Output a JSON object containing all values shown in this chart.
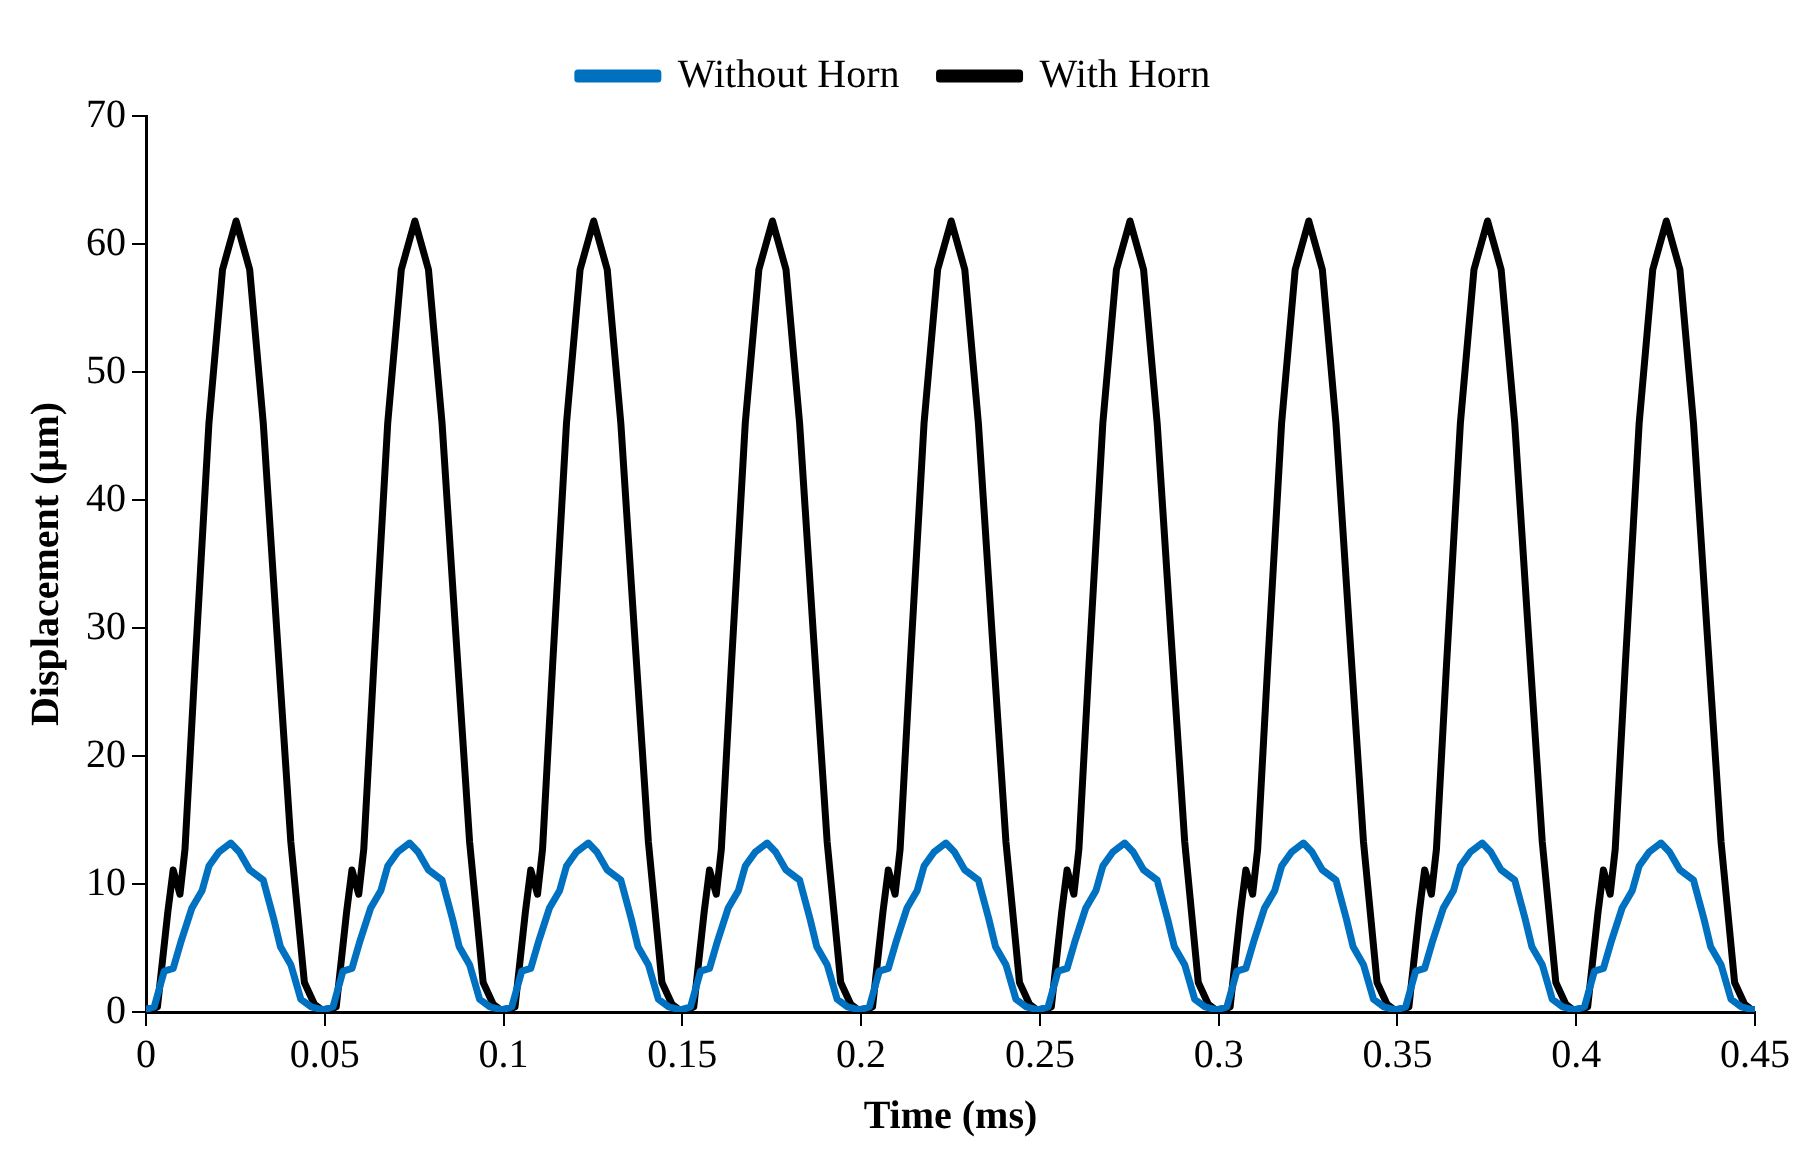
{
  "chart_data": {
    "type": "line",
    "xlabel": "Time (ms)",
    "ylabel": "Displacement (µm)",
    "xlim": [
      0,
      0.45
    ],
    "ylim": [
      0,
      70
    ],
    "xticks": [
      0,
      0.05,
      0.1,
      0.15,
      0.2,
      0.25,
      0.3,
      0.35,
      0.4,
      0.45
    ],
    "yticks": [
      0,
      10,
      20,
      30,
      40,
      50,
      60,
      70
    ],
    "grid": false,
    "legend": "top",
    "marker": "none",
    "line_style": "solid",
    "series": [
      {
        "name": "Without Horn",
        "color": "#0070c0",
        "x": [
          0,
          0.0023,
          0.0051,
          0.0076,
          0.0099,
          0.0128,
          0.0157,
          0.0176,
          0.0204,
          0.0237,
          0.0261,
          0.029,
          0.0328,
          0.0357,
          0.0376,
          0.0405,
          0.0433,
          0.0462,
          0.049,
          0.05,
          0.0523,
          0.0551,
          0.0576,
          0.0599,
          0.0628,
          0.0657,
          0.0676,
          0.0704,
          0.0737,
          0.0761,
          0.079,
          0.0828,
          0.0857,
          0.0876,
          0.0905,
          0.0933,
          0.0962,
          0.099,
          0.1,
          0.1023,
          0.1051,
          0.1076,
          0.1099,
          0.1128,
          0.1157,
          0.1176,
          0.1204,
          0.1237,
          0.1261,
          0.129,
          0.1328,
          0.1357,
          0.1376,
          0.1405,
          0.1433,
          0.1462,
          0.149,
          0.15,
          0.1523,
          0.1551,
          0.1576,
          0.1599,
          0.1628,
          0.1657,
          0.1676,
          0.1704,
          0.1737,
          0.1761,
          0.179,
          0.1828,
          0.1857,
          0.1876,
          0.1905,
          0.1933,
          0.1962,
          0.199,
          0.2,
          0.2023,
          0.2051,
          0.2076,
          0.2099,
          0.2128,
          0.2157,
          0.2176,
          0.2204,
          0.2237,
          0.2261,
          0.229,
          0.2328,
          0.2357,
          0.2376,
          0.2405,
          0.2433,
          0.2462,
          0.249,
          0.25,
          0.2523,
          0.2551,
          0.2576,
          0.2599,
          0.2628,
          0.2657,
          0.2676,
          0.2704,
          0.2737,
          0.2761,
          0.279,
          0.2828,
          0.2857,
          0.2876,
          0.2905,
          0.2933,
          0.2962,
          0.299,
          0.3,
          0.3023,
          0.3051,
          0.3076,
          0.3099,
          0.3128,
          0.3157,
          0.3176,
          0.3204,
          0.3237,
          0.3261,
          0.329,
          0.3328,
          0.3357,
          0.3376,
          0.3405,
          0.3433,
          0.3462,
          0.349,
          0.35,
          0.3523,
          0.3551,
          0.3576,
          0.3599,
          0.3628,
          0.3657,
          0.3676,
          0.3704,
          0.3737,
          0.3761,
          0.379,
          0.3828,
          0.3857,
          0.3876,
          0.3905,
          0.3933,
          0.3962,
          0.399,
          0.4,
          0.4023,
          0.4051,
          0.4076,
          0.4099,
          0.4128,
          0.4157,
          0.4176,
          0.4204,
          0.4237,
          0.4261,
          0.429,
          0.4328,
          0.4357,
          0.4376,
          0.4405,
          0.4433,
          0.4462,
          0.449,
          0.45
        ],
        "values": [
          0.2,
          0.4,
          3.2,
          3.4,
          5.6,
          8.1,
          9.5,
          11.4,
          12.5,
          13.2,
          12.5,
          11.1,
          10.3,
          7.3,
          5.1,
          3.7,
          1.0,
          0.4,
          0.2,
          0.2,
          0.4,
          3.2,
          3.4,
          5.6,
          8.1,
          9.5,
          11.4,
          12.5,
          13.2,
          12.5,
          11.1,
          10.3,
          7.3,
          5.1,
          3.7,
          1.0,
          0.4,
          0.2,
          0.2,
          0.4,
          3.2,
          3.4,
          5.6,
          8.1,
          9.5,
          11.4,
          12.5,
          13.2,
          12.5,
          11.1,
          10.3,
          7.3,
          5.1,
          3.7,
          1.0,
          0.4,
          0.2,
          0.2,
          0.4,
          3.2,
          3.4,
          5.6,
          8.1,
          9.5,
          11.4,
          12.5,
          13.2,
          12.5,
          11.1,
          10.3,
          7.3,
          5.1,
          3.7,
          1.0,
          0.4,
          0.2,
          0.2,
          0.4,
          3.2,
          3.4,
          5.6,
          8.1,
          9.5,
          11.4,
          12.5,
          13.2,
          12.5,
          11.1,
          10.3,
          7.3,
          5.1,
          3.7,
          1.0,
          0.4,
          0.2,
          0.2,
          0.4,
          3.2,
          3.4,
          5.6,
          8.1,
          9.5,
          11.4,
          12.5,
          13.2,
          12.5,
          11.1,
          10.3,
          7.3,
          5.1,
          3.7,
          1.0,
          0.4,
          0.2,
          0.2,
          0.4,
          3.2,
          3.4,
          5.6,
          8.1,
          9.5,
          11.4,
          12.5,
          13.2,
          12.5,
          11.1,
          10.3,
          7.3,
          5.1,
          3.7,
          1.0,
          0.4,
          0.2,
          0.2,
          0.4,
          3.2,
          3.4,
          5.6,
          8.1,
          9.5,
          11.4,
          12.5,
          13.2,
          12.5,
          11.1,
          10.3,
          7.3,
          5.1,
          3.7,
          1.0,
          0.4,
          0.2,
          0.2,
          0.4,
          3.2,
          3.4,
          5.6,
          8.1,
          9.5,
          11.4,
          12.5,
          13.2,
          12.5,
          11.1,
          10.3,
          7.3,
          5.1,
          3.7,
          1.0,
          0.4,
          0.2,
          0.2
        ]
      },
      {
        "name": "With Horn",
        "color": "#000000",
        "x": [
          0,
          0.0032,
          0.0061,
          0.0076,
          0.0095,
          0.0109,
          0.0137,
          0.0176,
          0.0214,
          0.0252,
          0.029,
          0.0328,
          0.0366,
          0.0405,
          0.0443,
          0.0471,
          0.05,
          0.0532,
          0.0561,
          0.0576,
          0.0595,
          0.0609,
          0.0637,
          0.0676,
          0.0714,
          0.0752,
          0.079,
          0.0828,
          0.0866,
          0.0905,
          0.0943,
          0.0971,
          0.1,
          0.1032,
          0.1061,
          0.1076,
          0.1095,
          0.1109,
          0.1137,
          0.1176,
          0.1214,
          0.1252,
          0.129,
          0.1328,
          0.1366,
          0.1405,
          0.1443,
          0.1471,
          0.15,
          0.1532,
          0.1561,
          0.1576,
          0.1595,
          0.1609,
          0.1637,
          0.1676,
          0.1714,
          0.1752,
          0.179,
          0.1828,
          0.1866,
          0.1905,
          0.1943,
          0.1971,
          0.2,
          0.2032,
          0.2061,
          0.2076,
          0.2095,
          0.2109,
          0.2137,
          0.2176,
          0.2214,
          0.2252,
          0.229,
          0.2328,
          0.2366,
          0.2405,
          0.2443,
          0.2471,
          0.25,
          0.2532,
          0.2561,
          0.2576,
          0.2595,
          0.2609,
          0.2637,
          0.2676,
          0.2714,
          0.2752,
          0.279,
          0.2828,
          0.2866,
          0.2905,
          0.2943,
          0.2971,
          0.3,
          0.3032,
          0.3061,
          0.3076,
          0.3095,
          0.3109,
          0.3137,
          0.3176,
          0.3214,
          0.3252,
          0.329,
          0.3328,
          0.3366,
          0.3405,
          0.3443,
          0.3471,
          0.35,
          0.3532,
          0.3561,
          0.3576,
          0.3595,
          0.3609,
          0.3637,
          0.3676,
          0.3714,
          0.3752,
          0.379,
          0.3828,
          0.3866,
          0.3905,
          0.3943,
          0.3971,
          0.4,
          0.4032,
          0.4061,
          0.4076,
          0.4095,
          0.4109,
          0.4137,
          0.4176,
          0.4214,
          0.4252,
          0.429,
          0.4328,
          0.4366,
          0.4405,
          0.4443,
          0.4471,
          0.45
        ],
        "values": [
          0,
          0.4,
          7.8,
          11.1,
          9.2,
          12.7,
          27,
          46,
          58,
          61.8,
          58,
          46,
          29.7,
          13.3,
          2.3,
          0.6,
          0,
          0.4,
          7.8,
          11.1,
          9.2,
          12.7,
          27,
          46,
          58,
          61.8,
          58,
          46,
          29.7,
          13.3,
          2.3,
          0.6,
          0,
          0.4,
          7.8,
          11.1,
          9.2,
          12.7,
          27,
          46,
          58,
          61.8,
          58,
          46,
          29.7,
          13.3,
          2.3,
          0.6,
          0,
          0.4,
          7.8,
          11.1,
          9.2,
          12.7,
          27,
          46,
          58,
          61.8,
          58,
          46,
          29.7,
          13.3,
          2.3,
          0.6,
          0,
          0.4,
          7.8,
          11.1,
          9.2,
          12.7,
          27,
          46,
          58,
          61.8,
          58,
          46,
          29.7,
          13.3,
          2.3,
          0.6,
          0,
          0.4,
          7.8,
          11.1,
          9.2,
          12.7,
          27,
          46,
          58,
          61.8,
          58,
          46,
          29.7,
          13.3,
          2.3,
          0.6,
          0,
          0.4,
          7.8,
          11.1,
          9.2,
          12.7,
          27,
          46,
          58,
          61.8,
          58,
          46,
          29.7,
          13.3,
          2.3,
          0.6,
          0,
          0.4,
          7.8,
          11.1,
          9.2,
          12.7,
          27,
          46,
          58,
          61.8,
          58,
          46,
          29.7,
          13.3,
          2.3,
          0.6,
          0,
          0.4,
          7.8,
          11.1,
          9.2,
          12.7,
          27,
          46,
          58,
          61.8,
          58,
          46,
          29.7,
          13.3,
          2.3,
          0.6,
          0
        ]
      }
    ]
  }
}
